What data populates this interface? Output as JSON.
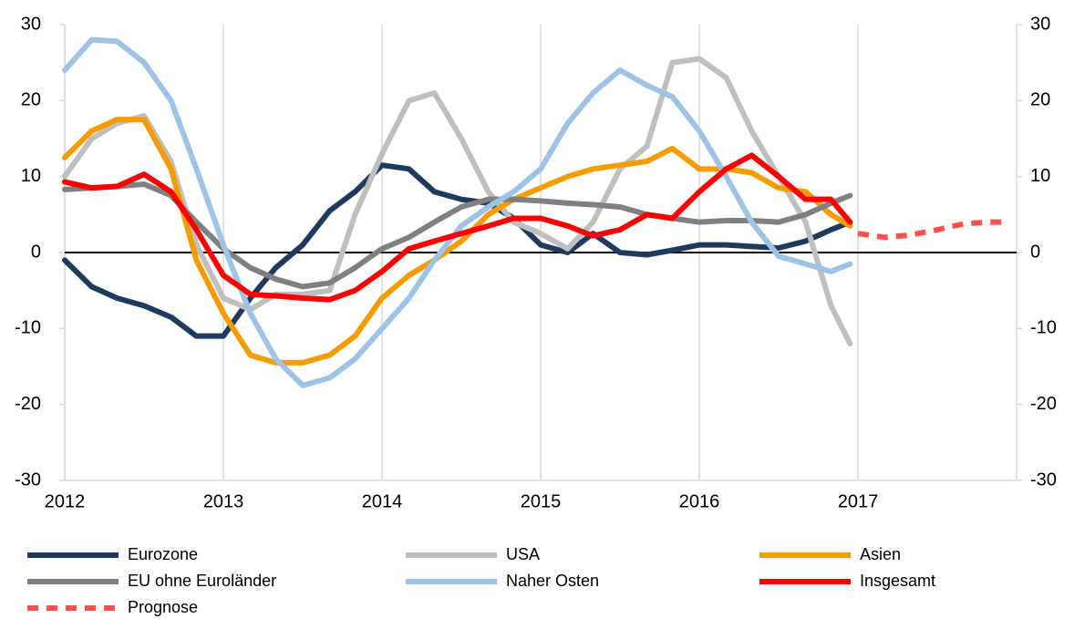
{
  "chart_data": {
    "type": "line",
    "x": [
      2012,
      2012.17,
      2012.33,
      2012.5,
      2012.67,
      2012.83,
      2013,
      2013.17,
      2013.33,
      2013.5,
      2013.67,
      2013.83,
      2014,
      2014.17,
      2014.33,
      2014.5,
      2014.67,
      2014.83,
      2015,
      2015.17,
      2015.33,
      2015.5,
      2015.67,
      2015.83,
      2016,
      2016.17,
      2016.33,
      2016.5,
      2016.67,
      2016.83,
      2016.95
    ],
    "series": [
      {
        "name": "Eurozone",
        "color": "#1f3a5f",
        "values": [
          -1,
          -4.5,
          -6,
          -7,
          -8.5,
          -11,
          -11,
          -6,
          -2,
          1,
          5.5,
          8,
          11.5,
          11,
          8,
          7,
          6.5,
          4.5,
          1,
          0,
          2.5,
          0,
          -0.3,
          0.3,
          1,
          1,
          0.8,
          0.6,
          1.5,
          3,
          4
        ]
      },
      {
        "name": "USA",
        "color": "#bfbfbf",
        "values": [
          10,
          15,
          17,
          18,
          12,
          1,
          -6,
          -7.5,
          -5.5,
          -5.5,
          -5,
          5,
          13,
          20,
          21,
          15,
          8,
          4,
          2.5,
          0.5,
          4,
          11,
          14,
          25,
          25.5,
          23,
          16,
          10,
          4,
          -7,
          -12
        ]
      },
      {
        "name": "Asien",
        "color": "#f59c00",
        "values": [
          12.5,
          16,
          17.5,
          17.5,
          11,
          -1,
          -8,
          -13.5,
          -14.5,
          -14.5,
          -13.5,
          -11,
          -6,
          -3,
          -1,
          1.5,
          5,
          7,
          8.5,
          10,
          11,
          11.5,
          12,
          13.7,
          11,
          11,
          10.5,
          8.5,
          8,
          5,
          3.5
        ]
      },
      {
        "name": "EU ohne Euroländer",
        "color": "#808080",
        "values": [
          8.3,
          8.5,
          8.7,
          9,
          7.5,
          4,
          0.5,
          -2,
          -3.5,
          -4.5,
          -4,
          -2,
          0.5,
          2,
          4,
          6,
          7,
          7,
          6.8,
          6.5,
          6.3,
          6,
          5,
          4.5,
          4,
          4.2,
          4.2,
          4,
          5,
          6.5,
          7.5
        ]
      },
      {
        "name": "Naher Osten",
        "color": "#9dc3e6",
        "values": [
          24,
          28,
          27.8,
          25,
          20,
          11,
          1,
          -8,
          -14,
          -17.5,
          -16.5,
          -14,
          -10,
          -6,
          -1,
          3.5,
          6,
          8,
          11,
          17,
          21,
          24,
          22,
          20.5,
          16,
          10,
          4,
          -0.5,
          -1.5,
          -2.5,
          -1.5
        ]
      },
      {
        "name": "Insgesamt",
        "color": "#ff0000",
        "values": [
          9.3,
          8.5,
          8.7,
          10.3,
          8,
          3,
          -3,
          -5.5,
          -5.7,
          -6,
          -6.2,
          -5,
          -2.5,
          0.5,
          1.5,
          2.5,
          3.5,
          4.5,
          4.5,
          3.5,
          2.2,
          3,
          5,
          4.5,
          8,
          11,
          12.8,
          10,
          7,
          7,
          4
        ]
      },
      {
        "name": "Prognose",
        "color": "#ff5050",
        "dashed": true,
        "x": [
          2017,
          2017.17,
          2017.33,
          2017.5,
          2017.67,
          2017.83,
          2017.95
        ],
        "values": [
          2.5,
          2,
          2.3,
          3,
          3.8,
          4,
          4
        ]
      }
    ],
    "xlim": [
      2012,
      2018
    ],
    "xticks": [
      2012,
      2013,
      2014,
      2015,
      2016,
      2017
    ],
    "ylim": [
      -30,
      30
    ],
    "yticks": [
      -30,
      -20,
      -10,
      0,
      10,
      20,
      30
    ],
    "y2lim": [
      -30,
      30
    ],
    "y2ticks": [
      -30,
      -20,
      -10,
      0,
      10,
      20,
      30
    ],
    "grid": "x"
  }
}
